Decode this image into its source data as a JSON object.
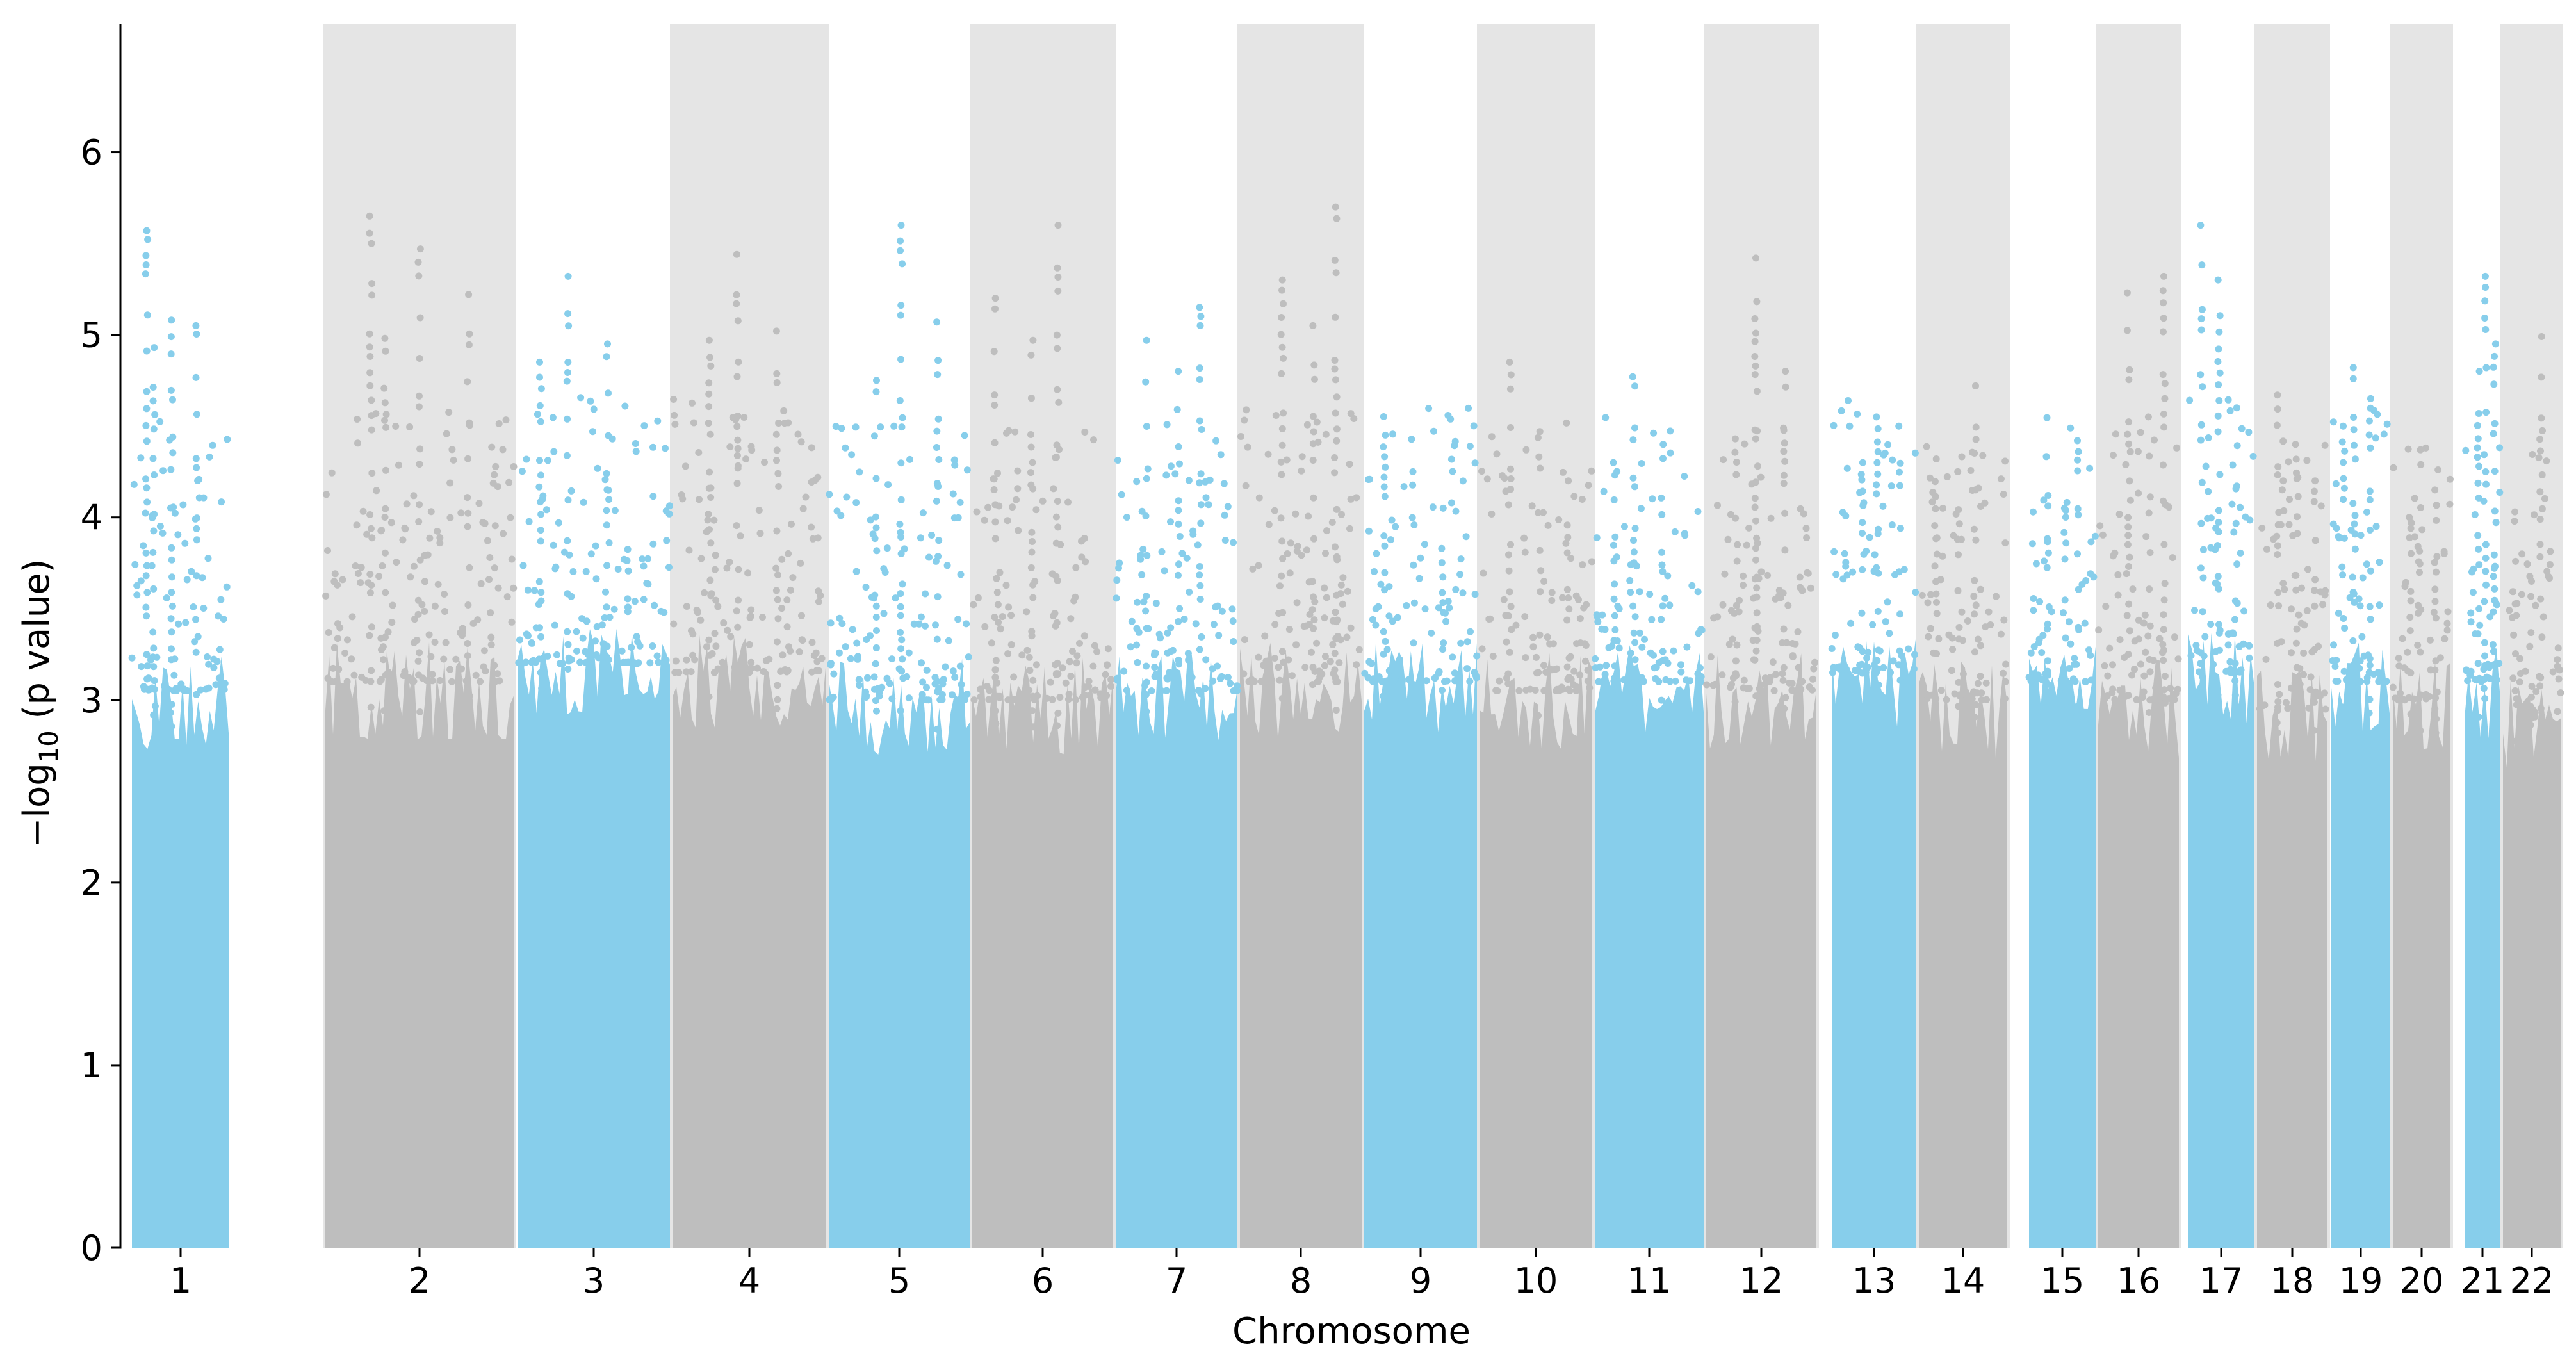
{
  "chart_data": {
    "type": "scatter",
    "subtype": "manhattan",
    "title": "",
    "xlabel": "Chromosome",
    "ylabel": {
      "prefix": "−log",
      "subscript": "10",
      "suffix": " (p value)"
    },
    "ylim": [
      0,
      6.7
    ],
    "yticks": [
      0,
      1,
      2,
      3,
      4,
      5,
      6
    ],
    "grid": false,
    "legend": "none",
    "colors": {
      "odd": "#87ceeb",
      "even": "#bebebe",
      "shade": "#e5e5e5"
    },
    "chromosomes": [
      {
        "label": "1",
        "shaded": false,
        "color": "#87ceeb",
        "top_peaks": [
          5.57,
          5.08,
          5.05,
          4.93
        ]
      },
      {
        "label": "2",
        "shaded": true,
        "color": "#bebebe",
        "top_peaks": [
          5.65,
          5.47,
          5.22,
          4.98
        ]
      },
      {
        "label": "3",
        "shaded": false,
        "color": "#87ceeb",
        "top_peaks": [
          5.32,
          4.95,
          4.85
        ]
      },
      {
        "label": "4",
        "shaded": true,
        "color": "#bebebe",
        "top_peaks": [
          5.44,
          5.02,
          4.97
        ]
      },
      {
        "label": "5",
        "shaded": false,
        "color": "#87ceeb",
        "top_peaks": [
          5.6,
          5.07,
          4.75
        ]
      },
      {
        "label": "6",
        "shaded": true,
        "color": "#bebebe",
        "top_peaks": [
          5.6,
          5.2,
          4.97
        ]
      },
      {
        "label": "7",
        "shaded": false,
        "color": "#87ceeb",
        "top_peaks": [
          5.15,
          4.97,
          4.8
        ]
      },
      {
        "label": "8",
        "shaded": true,
        "color": "#bebebe",
        "top_peaks": [
          5.7,
          5.3,
          5.05
        ]
      },
      {
        "label": "9",
        "shaded": false,
        "color": "#87ceeb",
        "top_peaks": [
          4.45,
          4.25,
          4.05
        ]
      },
      {
        "label": "10",
        "shaded": true,
        "color": "#bebebe",
        "top_peaks": [
          4.85,
          4.47,
          4.2
        ]
      },
      {
        "label": "11",
        "shaded": false,
        "color": "#87ceeb",
        "top_peaks": [
          4.77,
          4.4,
          4.3
        ]
      },
      {
        "label": "12",
        "shaded": true,
        "color": "#bebebe",
        "top_peaks": [
          5.42,
          4.8,
          4.43
        ]
      },
      {
        "label": "13",
        "shaded": false,
        "color": "#87ceeb",
        "top_peaks": [
          4.55,
          4.5,
          4.3
        ]
      },
      {
        "label": "14",
        "shaded": true,
        "color": "#bebebe",
        "top_peaks": [
          4.72,
          4.32,
          4.25
        ]
      },
      {
        "label": "15",
        "shaded": false,
        "color": "#87ceeb",
        "top_peaks": [
          4.42,
          4.12,
          4.05
        ]
      },
      {
        "label": "16",
        "shaded": true,
        "color": "#bebebe",
        "top_peaks": [
          5.32,
          5.23,
          4.55
        ]
      },
      {
        "label": "17",
        "shaded": false,
        "color": "#87ceeb",
        "top_peaks": [
          5.6,
          5.3,
          4.6
        ]
      },
      {
        "label": "18",
        "shaded": true,
        "color": "#bebebe",
        "top_peaks": [
          4.67,
          4.4,
          4.2
        ]
      },
      {
        "label": "19",
        "shaded": false,
        "color": "#87ceeb",
        "top_peaks": [
          4.82,
          4.65,
          4.5
        ]
      },
      {
        "label": "20",
        "shaded": true,
        "color": "#bebebe",
        "top_peaks": [
          4.37,
          4.15,
          4.0
        ]
      },
      {
        "label": "21",
        "shaded": false,
        "color": "#87ceeb",
        "top_peaks": [
          5.32,
          4.95,
          4.8
        ]
      },
      {
        "label": "22",
        "shaded": true,
        "color": "#bebebe",
        "top_peaks": [
          4.99,
          4.03,
          3.65
        ]
      }
    ]
  }
}
